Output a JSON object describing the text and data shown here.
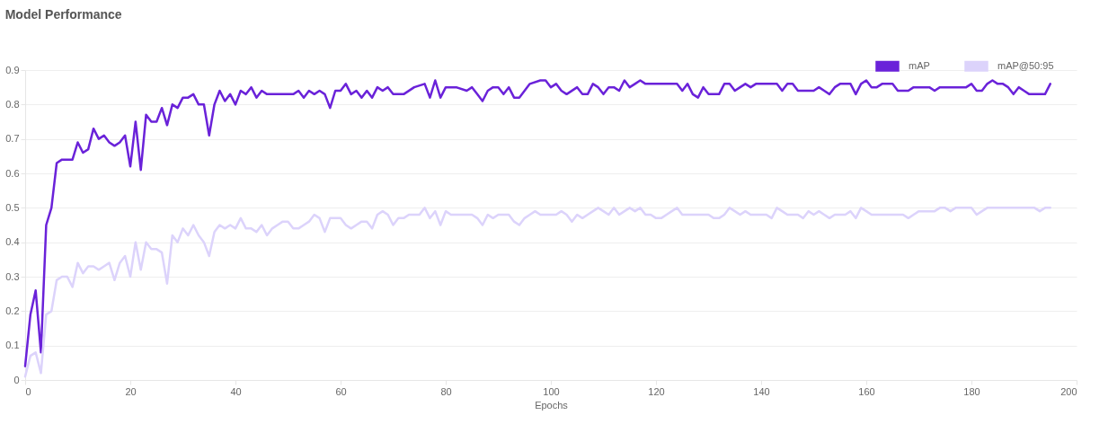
{
  "chart_data": {
    "type": "line",
    "title": "Model Performance",
    "xlabel": "Epochs",
    "xlim": [
      0,
      200
    ],
    "xticks": [
      0,
      20,
      40,
      60,
      80,
      100,
      120,
      140,
      160,
      180,
      200
    ],
    "ylim": [
      0,
      0.9
    ],
    "yticks": [
      0,
      0.1,
      0.2,
      0.3,
      0.4,
      0.5,
      0.6,
      0.7,
      0.8,
      0.9
    ],
    "grid": "y",
    "legend": "top right",
    "marker": "none",
    "line_style": "solid",
    "series": [
      {
        "name": "mAP",
        "color": "#6a22d9",
        "x": [
          0,
          1,
          2,
          3,
          4,
          5,
          6,
          7,
          8,
          9,
          10,
          11,
          12,
          13,
          14,
          15,
          16,
          17,
          18,
          19,
          20,
          21,
          22,
          23,
          24,
          25,
          26,
          27,
          28,
          29,
          30,
          31,
          32,
          33,
          34,
          35,
          36,
          37,
          38,
          39,
          40,
          41,
          42,
          43,
          44,
          45,
          46,
          47,
          48,
          49,
          50,
          51,
          52,
          53,
          54,
          55,
          56,
          57,
          58,
          59,
          60,
          61,
          62,
          63,
          64,
          65,
          66,
          67,
          68,
          69,
          70,
          72,
          74,
          76,
          77,
          78,
          79,
          80,
          82,
          84,
          85,
          86,
          87,
          88,
          89,
          90,
          91,
          92,
          93,
          94,
          95,
          96,
          98,
          99,
          100,
          101,
          102,
          103,
          105,
          106,
          107,
          108,
          109,
          110,
          111,
          112,
          113,
          114,
          115,
          116,
          117,
          118,
          120,
          122,
          124,
          125,
          126,
          127,
          128,
          129,
          130,
          131,
          132,
          133,
          134,
          135,
          136,
          137,
          138,
          139,
          140,
          141,
          142,
          143,
          144,
          145,
          146,
          147,
          148,
          149,
          150,
          151,
          152,
          153,
          154,
          155,
          156,
          157,
          158,
          159,
          160,
          161,
          162,
          163,
          164,
          165,
          166,
          167,
          168,
          169,
          170,
          171,
          172,
          173,
          174,
          175,
          176,
          177,
          178,
          179,
          180,
          181,
          182,
          183,
          184,
          185,
          186,
          187,
          188,
          189,
          190,
          191,
          192,
          193,
          194,
          195
        ],
        "values": [
          0.04,
          0.19,
          0.26,
          0.08,
          0.45,
          0.5,
          0.63,
          0.64,
          0.64,
          0.64,
          0.69,
          0.66,
          0.67,
          0.73,
          0.7,
          0.71,
          0.69,
          0.68,
          0.69,
          0.71,
          0.62,
          0.75,
          0.61,
          0.77,
          0.75,
          0.75,
          0.79,
          0.74,
          0.8,
          0.79,
          0.82,
          0.82,
          0.83,
          0.8,
          0.8,
          0.71,
          0.8,
          0.84,
          0.81,
          0.83,
          0.8,
          0.84,
          0.83,
          0.85,
          0.82,
          0.84,
          0.83,
          0.83,
          0.83,
          0.83,
          0.83,
          0.83,
          0.84,
          0.82,
          0.84,
          0.83,
          0.84,
          0.83,
          0.79,
          0.84,
          0.84,
          0.86,
          0.83,
          0.84,
          0.82,
          0.84,
          0.82,
          0.85,
          0.84,
          0.85,
          0.83,
          0.83,
          0.85,
          0.86,
          0.82,
          0.87,
          0.82,
          0.85,
          0.85,
          0.84,
          0.85,
          0.83,
          0.81,
          0.84,
          0.85,
          0.85,
          0.83,
          0.85,
          0.82,
          0.82,
          0.84,
          0.86,
          0.87,
          0.87,
          0.85,
          0.86,
          0.84,
          0.83,
          0.85,
          0.83,
          0.83,
          0.86,
          0.85,
          0.83,
          0.85,
          0.85,
          0.84,
          0.87,
          0.85,
          0.86,
          0.87,
          0.86,
          0.86,
          0.86,
          0.86,
          0.84,
          0.86,
          0.83,
          0.82,
          0.85,
          0.83,
          0.83,
          0.83,
          0.86,
          0.86,
          0.84,
          0.85,
          0.86,
          0.85,
          0.86,
          0.86,
          0.86,
          0.86,
          0.86,
          0.84,
          0.86,
          0.86,
          0.84,
          0.84,
          0.84,
          0.84,
          0.85,
          0.84,
          0.83,
          0.85,
          0.86,
          0.86,
          0.86,
          0.83,
          0.86,
          0.87,
          0.85,
          0.85,
          0.86,
          0.86,
          0.86,
          0.84,
          0.84,
          0.84,
          0.85,
          0.85,
          0.85,
          0.85,
          0.84,
          0.85,
          0.85,
          0.85,
          0.85,
          0.85,
          0.85,
          0.86,
          0.84,
          0.84,
          0.86,
          0.87,
          0.86,
          0.86,
          0.85,
          0.83,
          0.85,
          0.84,
          0.83,
          0.83,
          0.83,
          0.83,
          0.86
        ]
      },
      {
        "name": "mAP@50:95",
        "color": "#dcd3fb",
        "x": [
          0,
          1,
          2,
          3,
          4,
          5,
          6,
          7,
          8,
          9,
          10,
          11,
          12,
          13,
          14,
          15,
          16,
          17,
          18,
          19,
          20,
          21,
          22,
          23,
          24,
          25,
          26,
          27,
          28,
          29,
          30,
          31,
          32,
          33,
          34,
          35,
          36,
          37,
          38,
          39,
          40,
          41,
          42,
          43,
          44,
          45,
          46,
          47,
          48,
          49,
          50,
          51,
          52,
          53,
          54,
          55,
          56,
          57,
          58,
          59,
          60,
          61,
          62,
          63,
          64,
          65,
          66,
          67,
          68,
          69,
          70,
          71,
          72,
          73,
          74,
          75,
          76,
          77,
          78,
          79,
          80,
          81,
          82,
          83,
          84,
          85,
          86,
          87,
          88,
          89,
          90,
          91,
          92,
          93,
          94,
          95,
          96,
          97,
          98,
          100,
          101,
          102,
          103,
          104,
          105,
          106,
          107,
          108,
          109,
          110,
          111,
          112,
          113,
          114,
          115,
          116,
          117,
          118,
          119,
          120,
          121,
          122,
          123,
          124,
          125,
          126,
          128,
          129,
          130,
          131,
          132,
          133,
          134,
          135,
          136,
          137,
          138,
          139,
          140,
          141,
          142,
          143,
          144,
          145,
          146,
          147,
          148,
          149,
          150,
          151,
          152,
          153,
          154,
          155,
          156,
          157,
          158,
          159,
          160,
          161,
          162,
          163,
          164,
          165,
          166,
          167,
          168,
          169,
          170,
          171,
          172,
          173,
          174,
          175,
          176,
          177,
          178,
          179,
          180,
          181,
          182,
          183,
          184,
          185,
          186,
          187,
          188,
          189,
          190,
          191,
          192,
          193,
          194,
          195
        ],
        "values": [
          0.01,
          0.07,
          0.08,
          0.02,
          0.19,
          0.2,
          0.29,
          0.3,
          0.3,
          0.27,
          0.34,
          0.31,
          0.33,
          0.33,
          0.32,
          0.33,
          0.34,
          0.29,
          0.34,
          0.36,
          0.3,
          0.4,
          0.32,
          0.4,
          0.38,
          0.38,
          0.37,
          0.28,
          0.42,
          0.4,
          0.44,
          0.42,
          0.45,
          0.42,
          0.4,
          0.36,
          0.43,
          0.45,
          0.44,
          0.45,
          0.44,
          0.47,
          0.44,
          0.44,
          0.43,
          0.45,
          0.42,
          0.44,
          0.45,
          0.46,
          0.46,
          0.44,
          0.44,
          0.45,
          0.46,
          0.48,
          0.47,
          0.43,
          0.47,
          0.47,
          0.47,
          0.45,
          0.44,
          0.45,
          0.46,
          0.46,
          0.44,
          0.48,
          0.49,
          0.48,
          0.45,
          0.47,
          0.47,
          0.48,
          0.48,
          0.48,
          0.5,
          0.47,
          0.49,
          0.45,
          0.49,
          0.48,
          0.48,
          0.48,
          0.48,
          0.48,
          0.47,
          0.45,
          0.48,
          0.47,
          0.48,
          0.48,
          0.48,
          0.46,
          0.45,
          0.47,
          0.48,
          0.49,
          0.48,
          0.48,
          0.48,
          0.49,
          0.48,
          0.46,
          0.48,
          0.47,
          0.48,
          0.49,
          0.5,
          0.49,
          0.48,
          0.5,
          0.48,
          0.49,
          0.5,
          0.49,
          0.5,
          0.48,
          0.48,
          0.47,
          0.47,
          0.48,
          0.49,
          0.5,
          0.48,
          0.48,
          0.48,
          0.48,
          0.48,
          0.47,
          0.47,
          0.48,
          0.5,
          0.49,
          0.48,
          0.49,
          0.48,
          0.48,
          0.48,
          0.48,
          0.47,
          0.5,
          0.49,
          0.48,
          0.48,
          0.48,
          0.47,
          0.49,
          0.48,
          0.49,
          0.48,
          0.47,
          0.48,
          0.48,
          0.48,
          0.49,
          0.47,
          0.5,
          0.49,
          0.48,
          0.48,
          0.48,
          0.48,
          0.48,
          0.48,
          0.48,
          0.47,
          0.48,
          0.49,
          0.49,
          0.49,
          0.49,
          0.5,
          0.5,
          0.49,
          0.5,
          0.5,
          0.5,
          0.5,
          0.48,
          0.49,
          0.5,
          0.5,
          0.5,
          0.5,
          0.5,
          0.5,
          0.5,
          0.5,
          0.5,
          0.5,
          0.49,
          0.5,
          0.5
        ]
      }
    ]
  }
}
